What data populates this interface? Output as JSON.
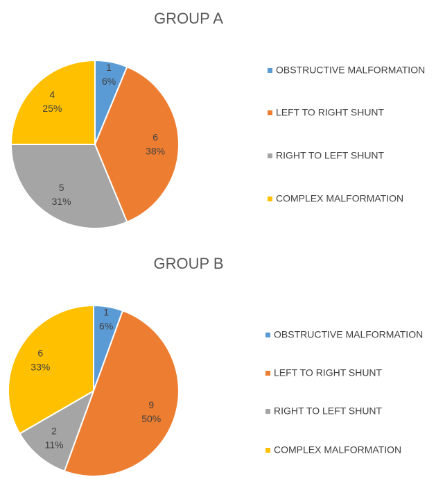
{
  "chart_data": [
    {
      "type": "pie",
      "title": "GROUP A",
      "categories": [
        "OBSTRUCTIVE MALFORMATION",
        "LEFT TO RIGHT SHUNT",
        "RIGHT TO LEFT SHUNT",
        "COMPLEX MALFORMATION"
      ],
      "values": [
        1,
        6,
        5,
        4
      ],
      "percent_labels": [
        "6%",
        "38%",
        "31%",
        "25%"
      ],
      "colors": [
        "#5b9bd5",
        "#ed7d31",
        "#a5a5a5",
        "#ffc000"
      ],
      "legend": "right"
    },
    {
      "type": "pie",
      "title": "GROUP B",
      "categories": [
        "OBSTRUCTIVE MALFORMATION",
        "LEFT TO RIGHT SHUNT",
        "RIGHT TO LEFT SHUNT",
        "COMPLEX MALFORMATION"
      ],
      "values": [
        1,
        9,
        2,
        6
      ],
      "percent_labels": [
        "6%",
        "50%",
        "11%",
        "33%"
      ],
      "colors": [
        "#5b9bd5",
        "#ed7d31",
        "#a5a5a5",
        "#ffc000"
      ],
      "legend": "right"
    }
  ]
}
